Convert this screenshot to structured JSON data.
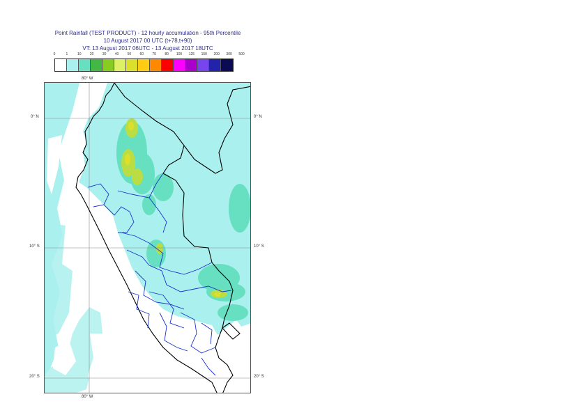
{
  "title": {
    "line1": "Point Rainfall (TEST PRODUCT) - 12 hourly accumulation - 95th Percentile",
    "line2": "10 August 2017 00 UTC (t+78,t+90)",
    "line3": "VT: 13 August 2017 06UTC - 13 August 2017 18UTC"
  },
  "legend": {
    "ticks": [
      "0",
      "1",
      "10",
      "20",
      "30",
      "40",
      "50",
      "60",
      "70",
      "80",
      "100",
      "125",
      "150",
      "200",
      "300",
      "500"
    ],
    "colors": [
      "#ffffff",
      "#aaf0ee",
      "#66e0c0",
      "#44b844",
      "#88cc22",
      "#ddf066",
      "#dde02a",
      "#ffcc11",
      "#ff8800",
      "#ff0000",
      "#ff00ff",
      "#aa00cc",
      "#7744ee",
      "#2222aa",
      "#0a0a55"
    ]
  },
  "map": {
    "lon_label_top": "80° W",
    "lon_label_bottom": "80° W",
    "lat_labels_left": [
      "0° N",
      "10° S",
      "20° S"
    ],
    "lat_labels_right": [
      "0° N",
      "10° S",
      "20° S"
    ],
    "colors": {
      "ocean": "#ffffff",
      "rain_light": "#aaf0ee",
      "rain_mid": "#66e0c0",
      "rain_heavy": "#bbdd44",
      "rain_peak": "#dde02a",
      "coast": "#000000",
      "admin": "#1a33cc",
      "grid": "#888888"
    }
  }
}
